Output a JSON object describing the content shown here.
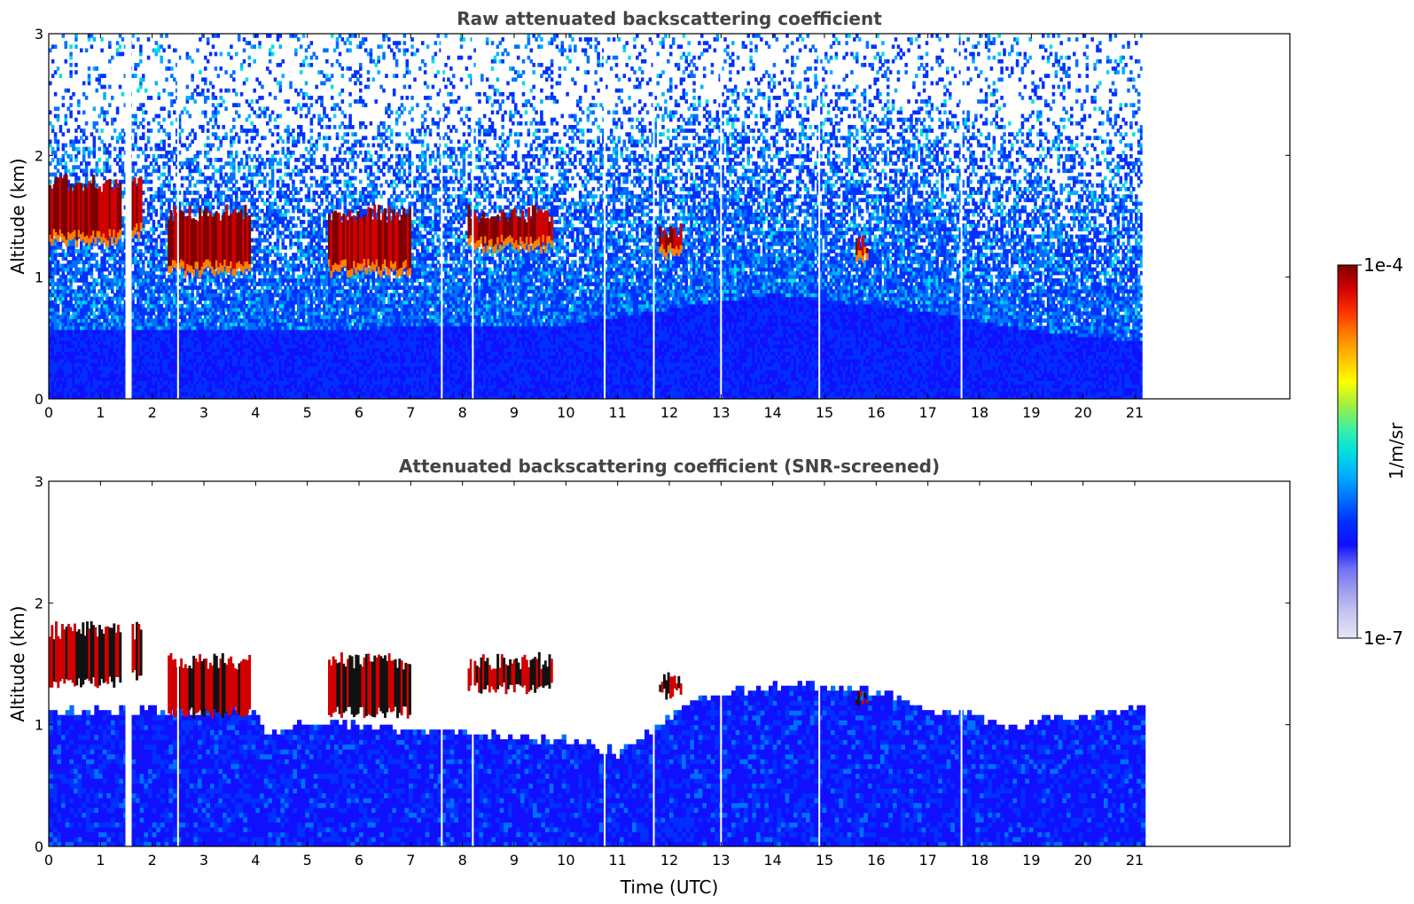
{
  "chart_data": [
    {
      "type": "heatmap",
      "title": "Raw attenuated backscattering coefficient",
      "xlabel": "",
      "ylabel": "Altitude (km)",
      "xlim": [
        0,
        24
      ],
      "ylim": [
        0,
        3
      ],
      "x_ticks": [
        "0",
        "1",
        "2",
        "3",
        "4",
        "5",
        "6",
        "7",
        "8",
        "9",
        "10",
        "11",
        "12",
        "13",
        "14",
        "15",
        "16",
        "17",
        "18",
        "19",
        "20",
        "21"
      ],
      "y_ticks": [
        "0",
        "1",
        "2",
        "3"
      ],
      "data_end_time": 21.15,
      "gaps": [
        1.5,
        2.5,
        7.6,
        8.2,
        10.75,
        11.7,
        13.0,
        14.9,
        17.65
      ],
      "boundary_layer_top_km": [
        [
          0,
          0.55
        ],
        [
          4,
          0.55
        ],
        [
          10,
          0.6
        ],
        [
          14,
          0.85
        ],
        [
          17,
          0.7
        ],
        [
          19,
          0.55
        ],
        [
          21.15,
          0.45
        ]
      ],
      "cloud_layers": [
        {
          "start": 0.0,
          "end": 1.4,
          "base_km": 1.35,
          "top_km": 1.85
        },
        {
          "start": 1.6,
          "end": 1.8,
          "base_km": 1.4,
          "top_km": 1.85
        },
        {
          "start": 2.3,
          "end": 3.9,
          "base_km": 1.1,
          "top_km": 1.6
        },
        {
          "start": 5.4,
          "end": 7.0,
          "base_km": 1.1,
          "top_km": 1.6
        },
        {
          "start": 8.1,
          "end": 9.7,
          "base_km": 1.3,
          "top_km": 1.6
        },
        {
          "start": 11.8,
          "end": 12.2,
          "base_km": 1.25,
          "top_km": 1.45
        },
        {
          "start": 15.6,
          "end": 15.8,
          "base_km": 1.2,
          "top_km": 1.35
        }
      ]
    },
    {
      "type": "heatmap",
      "title": "Attenuated backscattering coefficient (SNR-screened)",
      "xlabel": "Time (UTC)",
      "ylabel": "Altitude (km)",
      "xlim": [
        0,
        24
      ],
      "ylim": [
        0,
        3
      ],
      "x_ticks": [
        "0",
        "1",
        "2",
        "3",
        "4",
        "5",
        "6",
        "7",
        "8",
        "9",
        "10",
        "11",
        "12",
        "13",
        "14",
        "15",
        "16",
        "17",
        "18",
        "19",
        "20",
        "21"
      ],
      "y_ticks": [
        "0",
        "1",
        "2",
        "3"
      ],
      "data_end_time": 21.15,
      "signal_top_km": [
        [
          0,
          1.1
        ],
        [
          3.9,
          1.1
        ],
        [
          4.2,
          0.9
        ],
        [
          5.0,
          1.0
        ],
        [
          10,
          0.85
        ],
        [
          11,
          0.75
        ],
        [
          12.5,
          1.2
        ],
        [
          14,
          1.3
        ],
        [
          15,
          1.3
        ],
        [
          16,
          1.25
        ],
        [
          17,
          1.1
        ],
        [
          18,
          1.05
        ],
        [
          18.5,
          0.95
        ],
        [
          19.5,
          1.05
        ],
        [
          21.15,
          1.1
        ]
      ]
    }
  ],
  "colorbar": {
    "label": "1/m/sr",
    "max_label": "1e-4",
    "min_label": "1e-7",
    "colors": [
      "#e6e6f5",
      "#c8c8f0",
      "#a0a0ee",
      "#6f6ff5",
      "#1010ff",
      "#0030ff",
      "#0070ff",
      "#00b0ff",
      "#00e0e0",
      "#40f0a0",
      "#a0f040",
      "#ffff00",
      "#ffc000",
      "#ff8000",
      "#ff3000",
      "#d00000",
      "#800000"
    ]
  }
}
